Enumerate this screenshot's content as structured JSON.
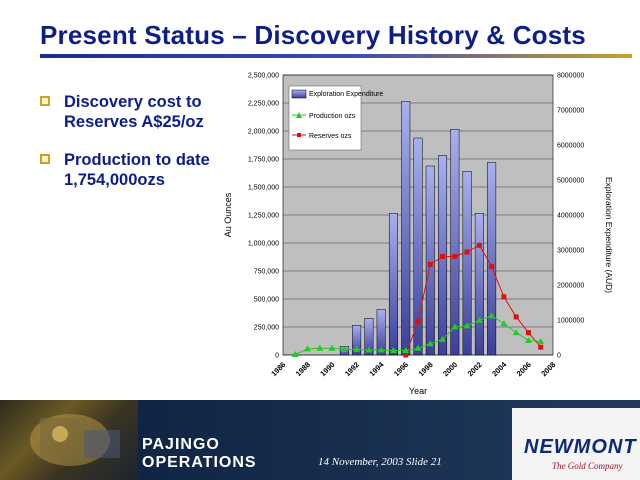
{
  "slide": {
    "title": "Present Status – Discovery History & Costs"
  },
  "bullets": [
    {
      "text": "Discovery cost to Reserves A$25/oz"
    },
    {
      "text": "Production to date 1,754,000ozs"
    }
  ],
  "footer": {
    "brand_line1": "PAJINGO",
    "brand_line2": "OPERATIONS",
    "date_slide": "14 November, 2003  Slide 21",
    "logo": "NEWMONT",
    "tagline": "The Gold Company"
  },
  "colors": {
    "title": "#0d1d8a",
    "bar": "#6f78d8",
    "production": "#22cc22",
    "reserves": "#dd1111",
    "plot_bg": "#bfbfbf"
  },
  "chart_data": {
    "type": "bar",
    "xlabel": "Year",
    "ylabel": "Au Ounces",
    "y2label": "Exploration Expenditure (AUD)",
    "ylim": [
      0,
      2500000
    ],
    "y2lim": [
      0,
      8000000
    ],
    "yticks": [
      "0",
      "250,000",
      "500,000",
      "750,000",
      "1,000,000",
      "1,250,000",
      "1,500,000",
      "1,750,000",
      "2,000,000",
      "2,250,000",
      "2,500,000"
    ],
    "y2ticks": [
      "0",
      "1000000",
      "2000000",
      "3000000",
      "4000000",
      "5000000",
      "6000000",
      "7000000",
      "8000000"
    ],
    "xticks": [
      "1986",
      "1988",
      "1990",
      "1992",
      "1994",
      "1996",
      "1998",
      "2000",
      "2002",
      "2004",
      "2006",
      "2008"
    ],
    "years": [
      1987,
      1988,
      1989,
      1990,
      1991,
      1992,
      1993,
      1994,
      1995,
      1996,
      1997,
      1998,
      1999,
      2000,
      2001,
      2002,
      2003,
      2004,
      2005,
      2006,
      2007
    ],
    "grid": true,
    "legend_position": "top-left",
    "series": [
      {
        "name": "Exploration Expenditure",
        "type": "bar",
        "axis": "right",
        "values": [
          null,
          null,
          null,
          null,
          250000,
          850000,
          1050000,
          1300000,
          4050000,
          7250000,
          6200000,
          5400000,
          5700000,
          6450000,
          5250000,
          4050000,
          5500000,
          null,
          null,
          null,
          null
        ]
      },
      {
        "name": "Production ozs",
        "type": "line",
        "axis": "left",
        "values": [
          5000,
          55000,
          60000,
          60000,
          50000,
          50000,
          45000,
          45000,
          40000,
          40000,
          60000,
          100000,
          140000,
          250000,
          260000,
          310000,
          350000,
          280000,
          200000,
          130000,
          120000
        ]
      },
      {
        "name": "Reserves ozs",
        "type": "line",
        "axis": "left",
        "values": [
          null,
          null,
          null,
          null,
          null,
          null,
          null,
          null,
          null,
          0,
          300000,
          810000,
          880000,
          880000,
          920000,
          980000,
          790000,
          520000,
          340000,
          200000,
          70000
        ]
      }
    ]
  }
}
